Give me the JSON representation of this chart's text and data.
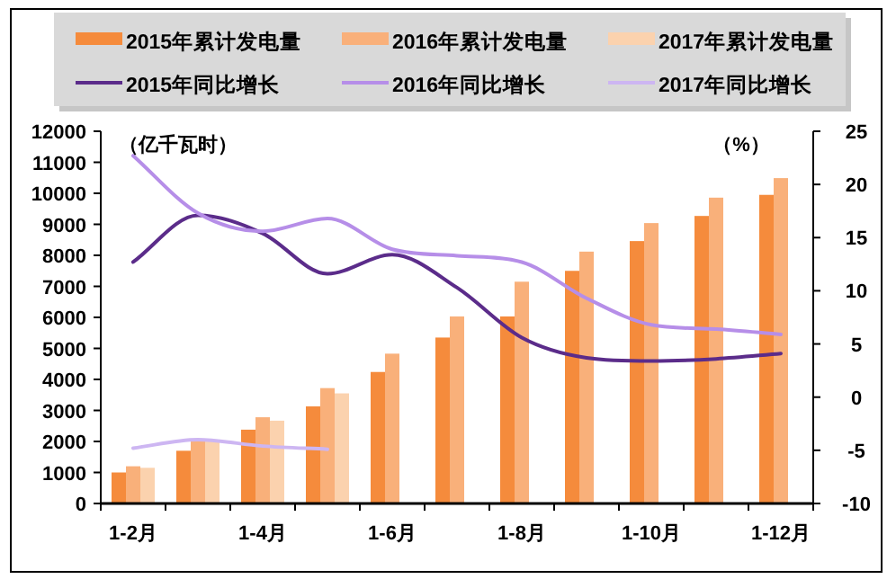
{
  "chart_data": {
    "type": "bar",
    "ylabel": "（亿千瓦时）",
    "y2label": "（%）",
    "legend": "top",
    "grid": false,
    "categories": [
      "1-2月",
      null,
      "1-4月",
      null,
      "1-6月",
      null,
      "1-8月",
      null,
      "1-10月",
      null,
      "1-12月"
    ],
    "ylim": [
      0,
      12000
    ],
    "yticks": [
      0,
      1000,
      2000,
      3000,
      4000,
      5000,
      6000,
      7000,
      8000,
      9000,
      10000,
      11000,
      12000
    ],
    "y2lim": [
      -10,
      25
    ],
    "y2ticks": [
      -10,
      -5,
      0,
      5,
      10,
      15,
      20,
      25
    ],
    "series": [
      {
        "name": "2015年累计发电量",
        "color": "#f58b3c",
        "values": [
          1000,
          1700,
          2380,
          3130,
          4240,
          5350,
          6030,
          7500,
          8460,
          9270,
          9950
        ]
      },
      {
        "name": "2016年累计发电量",
        "color": "#f9b07a",
        "values": [
          1200,
          2030,
          2780,
          3720,
          4830,
          6030,
          7150,
          8120,
          9040,
          9860,
          10490
        ]
      },
      {
        "name": "2017年累计发电量",
        "color": "#fbd2ae",
        "values": [
          1150,
          2000,
          2670,
          3550,
          null,
          null,
          null,
          null,
          null,
          null,
          null
        ]
      },
      {
        "name": "2015年同比增长",
        "type": "line",
        "axis": "y2",
        "color": "#5b2c8a",
        "values": [
          12.7,
          17.1,
          15.4,
          11.6,
          13.4,
          10.3,
          5.6,
          3.7,
          3.4,
          3.6,
          4.1
        ]
      },
      {
        "name": "2016年同比增长",
        "type": "line",
        "axis": "y2",
        "color": "#b68ee8",
        "values": [
          22.7,
          17.3,
          15.6,
          16.8,
          13.9,
          13.3,
          12.7,
          9.3,
          6.8,
          6.4,
          5.9
        ]
      },
      {
        "name": "2017年同比增长",
        "type": "line",
        "axis": "y2",
        "color": "#cdb6f2",
        "values": [
          -4.8,
          -4.0,
          -4.6,
          -4.9,
          null,
          null,
          null,
          null,
          null,
          null,
          null
        ]
      }
    ]
  }
}
